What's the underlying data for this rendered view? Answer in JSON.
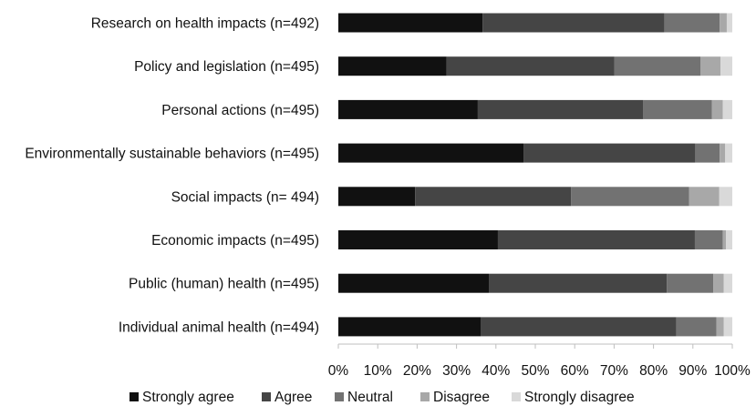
{
  "chart_data": {
    "type": "bar",
    "orientation": "horizontal",
    "stacked": true,
    "percent": true,
    "title": "",
    "xlabel": "",
    "ylabel": "",
    "xlim": [
      0,
      100
    ],
    "grid": false,
    "legend_position": "bottom",
    "tick_labels": [
      "0%",
      "10%",
      "20%",
      "30%",
      "40%",
      "50%",
      "60%",
      "70%",
      "80%",
      "90%",
      "100%"
    ],
    "categories": [
      "Research on health impacts (n=492)",
      "Policy and legislation (n=495)",
      "Personal actions (n=495)",
      "Environmentally sustainable behaviors (n=495)",
      "Social impacts (n= 494)",
      "Economic impacts (n=495)",
      "Public (human) health (n=495)",
      "Individual animal health (n=494)"
    ],
    "series": [
      {
        "name": "Strongly agree",
        "color": "#111111",
        "values": [
          36.6,
          27.5,
          35.4,
          47.0,
          19.5,
          40.5,
          38.2,
          36.2
        ]
      },
      {
        "name": "Agree",
        "color": "#454545",
        "values": [
          46.2,
          42.6,
          42.0,
          43.6,
          39.6,
          50.0,
          45.2,
          49.6
        ]
      },
      {
        "name": "Neutral",
        "color": "#727272",
        "values": [
          14.0,
          21.8,
          17.4,
          6.2,
          29.9,
          7.1,
          11.8,
          10.2
        ]
      },
      {
        "name": "Disagree",
        "color": "#a8a8a8",
        "values": [
          1.8,
          5.1,
          2.8,
          1.4,
          7.7,
          0.8,
          2.6,
          1.8
        ]
      },
      {
        "name": "Strongly disagree",
        "color": "#d9d9d9",
        "values": [
          1.4,
          3.0,
          2.4,
          1.8,
          3.3,
          1.6,
          2.2,
          2.2
        ]
      }
    ]
  }
}
